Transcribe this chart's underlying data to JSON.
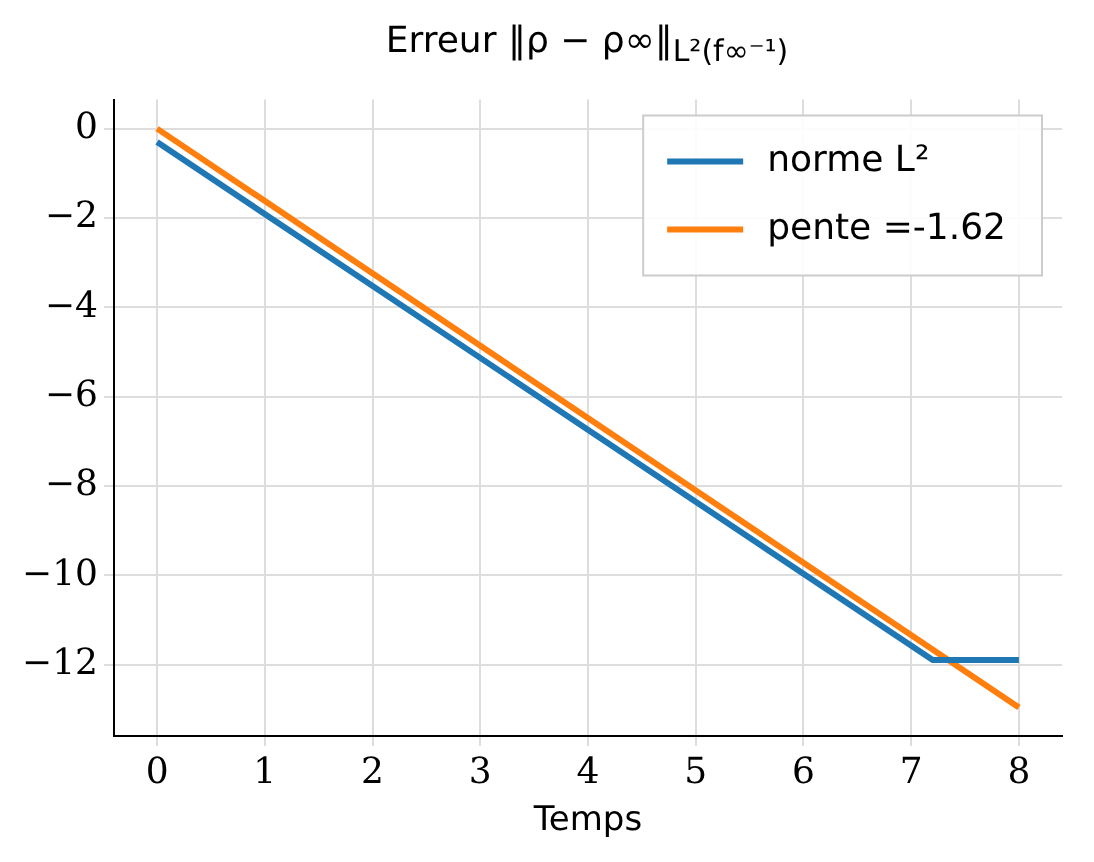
{
  "chart_data": {
    "type": "line",
    "title": "Erreur ‖ρ − ρ∞‖$_{L²(f∞⁻¹)}$",
    "xlabel": "Temps",
    "xlim": [
      -0.4,
      8.4
    ],
    "xticks": [
      0,
      1,
      2,
      3,
      4,
      5,
      6,
      7,
      8
    ],
    "ylim": [
      -13.6,
      0.65
    ],
    "yticks": [
      -12,
      -10,
      -8,
      -6,
      -4,
      -2,
      0
    ],
    "grid": true,
    "legend": "top right",
    "marker": "none",
    "line_style": "solid",
    "series": [
      {
        "name": "norme L²",
        "color": "#1f77b4",
        "x": [
          0,
          7.2,
          8
        ],
        "values": [
          -0.3,
          -11.9,
          -11.9
        ]
      },
      {
        "name": "pente =-1.62",
        "color": "#ff7f0e",
        "x": [
          0,
          8
        ],
        "values": [
          0,
          -12.96
        ]
      }
    ]
  }
}
